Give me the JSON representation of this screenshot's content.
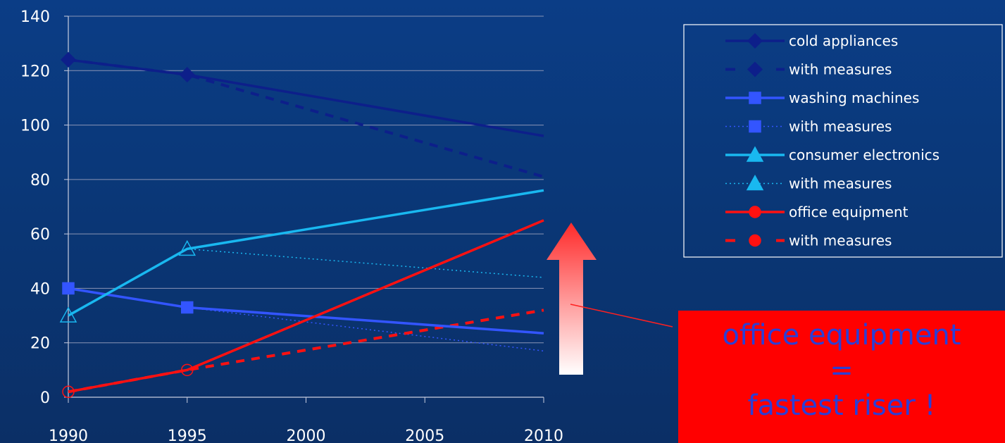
{
  "chart_data": {
    "type": "line",
    "x": [
      1990,
      1995,
      2010
    ],
    "x_ticks": [
      "1990",
      "1995",
      "2000",
      "2005",
      "2010"
    ],
    "y_ticks": [
      "0",
      "20",
      "40",
      "60",
      "80",
      "100",
      "120",
      "140"
    ],
    "ylim": [
      0,
      140
    ],
    "xlim": [
      1990,
      2010
    ],
    "grid": "horizontal",
    "legend_position": "top-right",
    "series": [
      {
        "name": "cold appliances",
        "values": [
          124,
          118.5,
          96
        ],
        "color": "#0d1f8a",
        "style": "solid",
        "marker": "diamond"
      },
      {
        "name": "with measures",
        "values": [
          124,
          118.5,
          81
        ],
        "color": "#0d1f8a",
        "style": "dashed",
        "marker": "diamond"
      },
      {
        "name": "washing machines",
        "values": [
          40,
          33,
          23.5
        ],
        "color": "#3355ff",
        "style": "solid",
        "marker": "square"
      },
      {
        "name": "with measures",
        "values": [
          40,
          33,
          17
        ],
        "color": "#3355ff",
        "style": "dotted",
        "marker": "square"
      },
      {
        "name": "consumer electronics",
        "values": [
          30,
          54.5,
          76
        ],
        "color": "#19b8f0",
        "style": "solid",
        "marker": "triangle"
      },
      {
        "name": "with measures",
        "values": [
          30,
          54.5,
          44
        ],
        "color": "#19b8f0",
        "style": "dotted",
        "marker": "triangle"
      },
      {
        "name": "office equipment",
        "values": [
          2,
          10,
          65
        ],
        "color": "#ff1111",
        "style": "solid",
        "marker": "circle"
      },
      {
        "name": "with measures",
        "values": [
          2,
          10,
          32
        ],
        "color": "#ff1111",
        "style": "dashed",
        "marker": "circle"
      }
    ]
  },
  "callout": {
    "line1": "office equipment",
    "line2": "=",
    "line3": "fastest riser !"
  }
}
